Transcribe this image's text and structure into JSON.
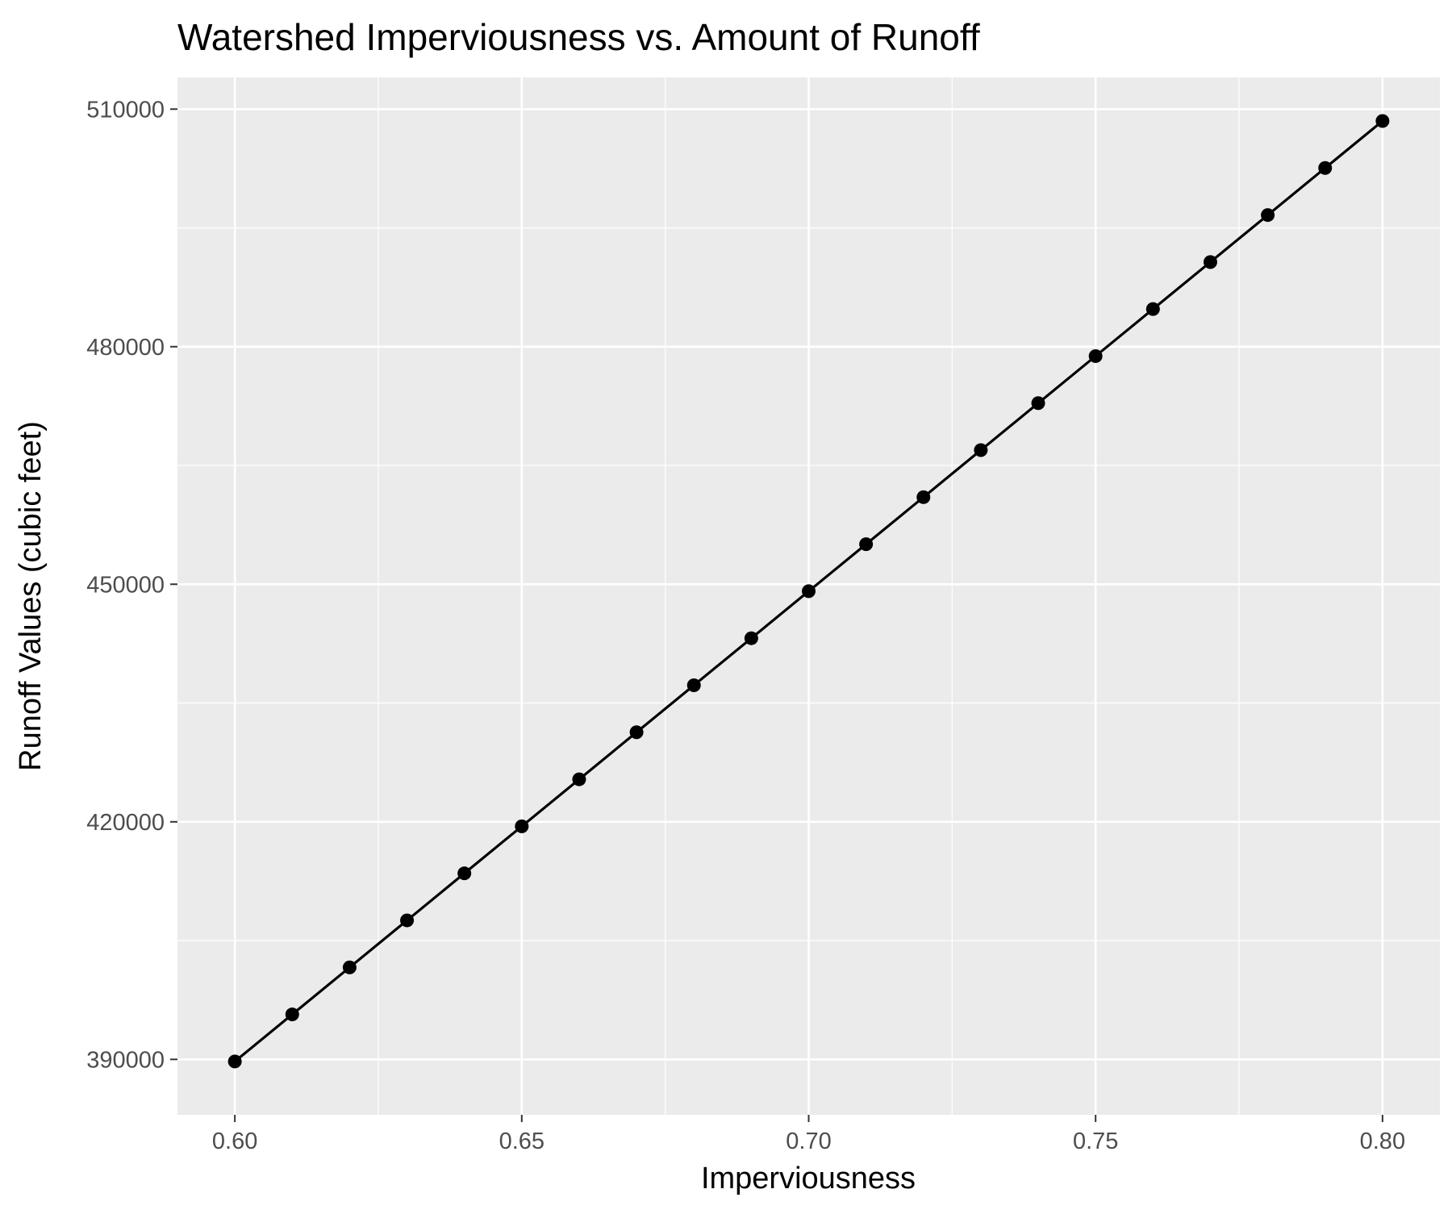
{
  "chart_data": {
    "type": "line",
    "title": "Watershed Imperviousness vs. Amount of Runoff",
    "xlabel": "Imperviousness",
    "ylabel": "Runoff Values (cubic feet)",
    "x_ticks": [
      "0.60",
      "0.65",
      "0.70",
      "0.75",
      "0.80"
    ],
    "y_ticks": [
      "390000",
      "420000",
      "450000",
      "480000",
      "510000"
    ],
    "xlim": [
      0.59,
      0.81
    ],
    "ylim": [
      383000,
      514000
    ],
    "grid": true,
    "legend": "none",
    "markers": true,
    "colors": {
      "panel_background": "#ebebeb",
      "grid": "#ffffff",
      "line": "#000000",
      "points": "#000000",
      "tick_text": "#4d4d4d"
    },
    "series": [
      {
        "x": [
          0.6,
          0.61,
          0.62,
          0.63,
          0.64,
          0.65,
          0.66,
          0.67,
          0.68,
          0.69,
          0.7,
          0.71,
          0.72,
          0.73,
          0.74,
          0.75,
          0.76,
          0.77,
          0.78,
          0.79,
          0.8
        ],
        "y": [
          389740,
          395678,
          401616,
          407554,
          413492,
          419430,
          425368,
          431306,
          437244,
          443182,
          449120,
          455058,
          460996,
          466934,
          472872,
          478810,
          484748,
          490686,
          496624,
          502562,
          508500
        ]
      }
    ]
  }
}
